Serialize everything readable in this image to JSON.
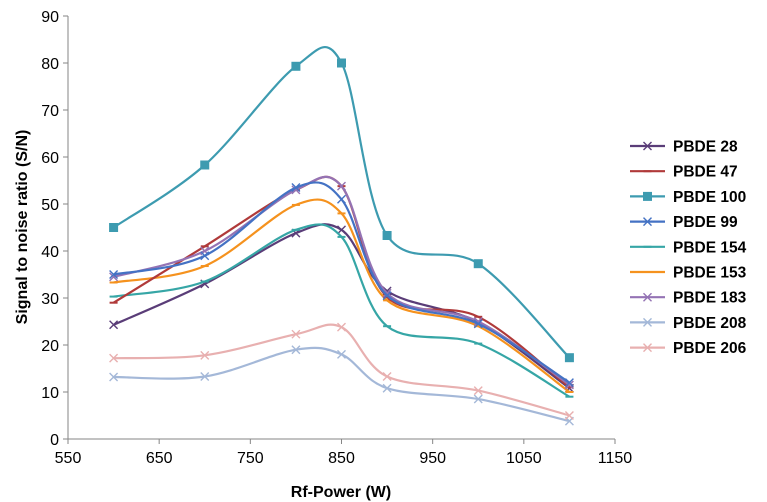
{
  "chart_data": {
    "type": "scatter",
    "title": "",
    "xlabel": "Rf-Power (W)",
    "ylabel": "Signal to noise ratio (S/N)",
    "xlim": [
      550,
      1150
    ],
    "ylim": [
      0,
      90
    ],
    "xticks": [
      550,
      650,
      750,
      850,
      950,
      1050,
      1150
    ],
    "yticks": [
      0,
      10,
      20,
      30,
      40,
      50,
      60,
      70,
      80,
      90
    ],
    "grid": false,
    "legend": "right",
    "x": [
      600,
      700,
      800,
      850,
      900,
      1000,
      1100
    ],
    "series": [
      {
        "name": "PBDE 28",
        "color": "#5a3d78",
        "marker": "x",
        "values": [
          24.3,
          33.0,
          43.8,
          44.5,
          31.5,
          24.8,
          10.8
        ]
      },
      {
        "name": "PBDE 47",
        "color": "#b03a3a",
        "marker": "dash",
        "values": [
          29.0,
          41.0,
          53.0,
          53.8,
          30.2,
          26.0,
          11.0
        ]
      },
      {
        "name": "PBDE 100",
        "color": "#3d9bb0",
        "marker": "square",
        "values": [
          45.0,
          58.3,
          79.3,
          80.0,
          43.3,
          37.3,
          17.3
        ]
      },
      {
        "name": "PBDE 99",
        "color": "#4472c4",
        "marker": "x",
        "values": [
          35.0,
          39.0,
          53.5,
          51.0,
          30.5,
          24.5,
          12.0
        ]
      },
      {
        "name": "PBDE 154",
        "color": "#36a6a6",
        "marker": "dash",
        "values": [
          30.3,
          33.5,
          44.5,
          43.0,
          24.0,
          20.3,
          9.0
        ]
      },
      {
        "name": "PBDE 153",
        "color": "#f5921e",
        "marker": "dash",
        "values": [
          33.3,
          36.8,
          49.8,
          48.0,
          29.5,
          24.0,
          10.0
        ]
      },
      {
        "name": "PBDE 183",
        "color": "#9473b4",
        "marker": "x",
        "values": [
          34.5,
          40.0,
          53.0,
          53.8,
          31.0,
          25.0,
          11.5
        ]
      },
      {
        "name": "PBDE 208",
        "color": "#a4b8d8",
        "marker": "x",
        "values": [
          13.2,
          13.3,
          19.0,
          18.0,
          10.8,
          8.5,
          3.8
        ]
      },
      {
        "name": "PBDE 206",
        "color": "#e8b0b0",
        "marker": "x",
        "values": [
          17.2,
          17.8,
          22.3,
          23.8,
          13.3,
          10.3,
          5.0
        ]
      }
    ]
  }
}
